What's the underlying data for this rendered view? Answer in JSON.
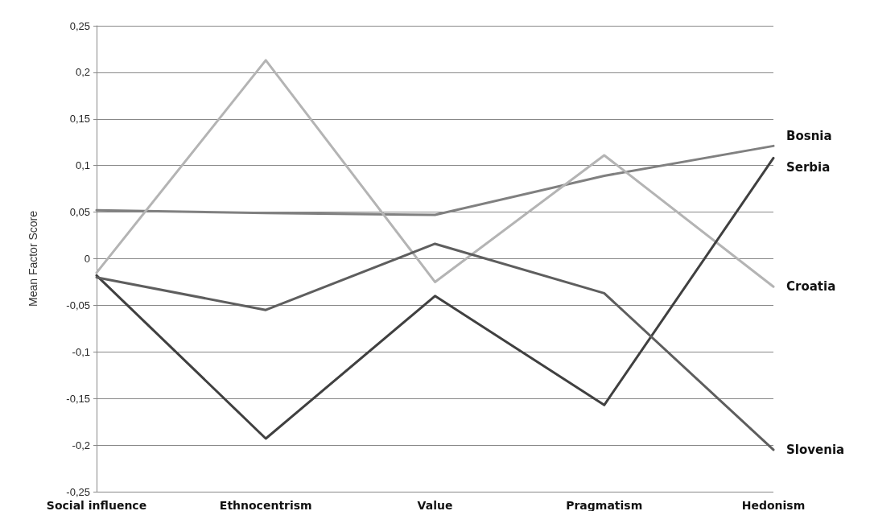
{
  "chart_data": {
    "type": "line",
    "ylabel": "Mean Factor Score",
    "categories": [
      "Social influence",
      "Ethnocentrism",
      "Value",
      "Pragmatism",
      "Hedonism"
    ],
    "series": [
      {
        "name": "Bosnia",
        "color": "#808080",
        "values": [
          0.052,
          0.049,
          0.047,
          0.089,
          0.121
        ]
      },
      {
        "name": "Croatia",
        "color": "#b4b4b4",
        "values": [
          -0.015,
          0.213,
          -0.025,
          0.111,
          -0.03
        ]
      },
      {
        "name": "Serbia",
        "color": "#404040",
        "values": [
          -0.018,
          -0.193,
          -0.04,
          -0.157,
          0.108
        ]
      },
      {
        "name": "Slovenia",
        "color": "#5e5e5e",
        "values": [
          -0.02,
          -0.055,
          0.016,
          -0.037,
          -0.205
        ]
      }
    ],
    "ylim": [
      -0.25,
      0.25
    ],
    "yticks": [
      {
        "value": -0.25,
        "label": "-0,25"
      },
      {
        "value": -0.2,
        "label": "-0,2"
      },
      {
        "value": -0.15,
        "label": "-0,15"
      },
      {
        "value": -0.1,
        "label": "-0,1"
      },
      {
        "value": -0.05,
        "label": "-0,05"
      },
      0,
      {
        "value": 0.05,
        "label": "0,05"
      },
      {
        "value": 0.1,
        "label": "0,1"
      },
      {
        "value": 0.15,
        "label": "0,15"
      },
      {
        "value": 0.2,
        "label": "0,2"
      },
      {
        "value": 0.25,
        "label": "0,25"
      }
    ],
    "grid": "y",
    "marker": "none",
    "line_style": "solid",
    "legend": false
  }
}
